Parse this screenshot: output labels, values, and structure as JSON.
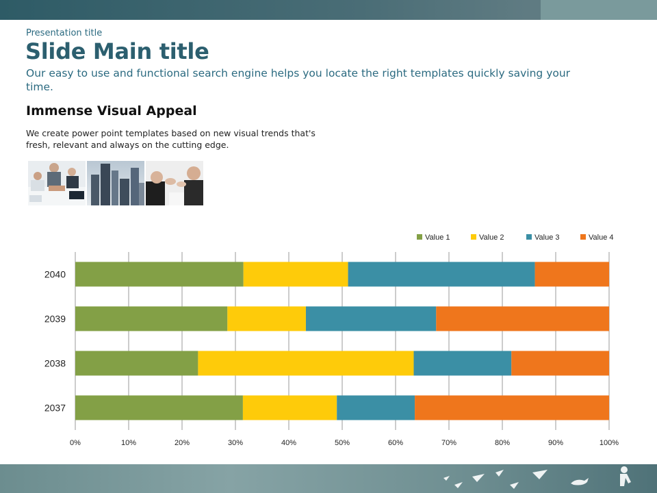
{
  "header": {
    "presentation_title": "Presentation title",
    "main_title": "Slide Main title",
    "subtitle": "Our easy to use and functional search engine helps you locate the right templates quickly saving your time."
  },
  "section": {
    "heading": "Immense Visual Appeal",
    "body": "We create power point templates based on new visual trends that's fresh, relevant and always on the cutting edge."
  },
  "images": [
    "business-team-hands-photo",
    "city-skyscrapers-photo",
    "people-applauding-photo"
  ],
  "colors": {
    "brand_dark": "#2c5f6f",
    "brand_text": "#2b6a80",
    "series": [
      "#83a046",
      "#fecb0a",
      "#3b8fa5",
      "#ef761c"
    ]
  },
  "chart_data": {
    "type": "bar",
    "orientation": "horizontal",
    "stacked": "percent",
    "title": "",
    "categories": [
      "2040",
      "2039",
      "2038",
      "2037"
    ],
    "series": [
      {
        "name": "Value   1",
        "values": [
          31.5,
          28.5,
          23.0,
          31.4
        ]
      },
      {
        "name": "Value   2",
        "values": [
          19.6,
          14.7,
          40.4,
          17.6
        ]
      },
      {
        "name": "Value   3",
        "values": [
          35.0,
          24.4,
          18.3,
          14.6
        ]
      },
      {
        "name": "Value   4",
        "values": [
          13.9,
          32.4,
          18.3,
          36.4
        ]
      }
    ],
    "xticks": [
      "0%",
      "10%",
      "20%",
      "30%",
      "40%",
      "50%",
      "60%",
      "70%",
      "80%",
      "90%",
      "100%"
    ],
    "xlim": [
      0,
      100
    ],
    "xlabel": "",
    "ylabel": "",
    "grid": "vertical",
    "legend_position": "top-right"
  }
}
